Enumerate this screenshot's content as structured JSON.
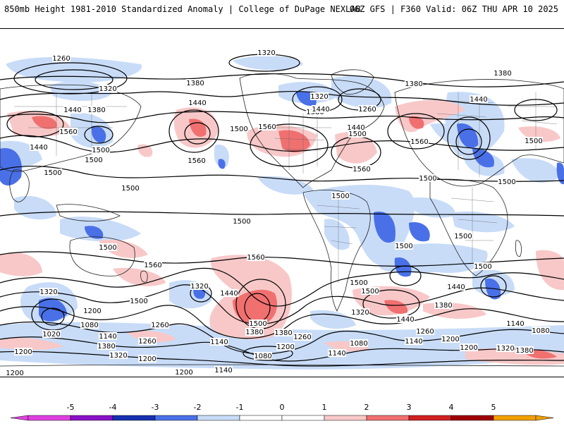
{
  "header": {
    "title_left": "850mb Height 1981-2010 Standardized Anomaly | College of DuPage NEXLAB",
    "title_right": "06Z GFS | F360 Valid: 06Z THU APR 10 2025"
  },
  "colors": {
    "neg5": "#e040e0",
    "neg4": "#8a10c8",
    "neg3": "#1530b0",
    "neg2": "#4a70e8",
    "neg1": "#c8dcf8",
    "zero": "#ffffff",
    "pos1": "#f8c8c8",
    "pos2": "#f07070",
    "pos3": "#d02020",
    "pos4": "#a00000",
    "pos5": "#f0a000"
  },
  "colorbar": {
    "ticks": [
      "-5",
      "-4",
      "-3",
      "-2",
      "-1",
      "0",
      "1",
      "2",
      "3",
      "4",
      "5"
    ]
  },
  "contour_labels": {
    "l1": "1260",
    "l2": "1320",
    "l3": "1320",
    "l4": "1380",
    "l5": "1440",
    "l6": "1380",
    "l7": "1560",
    "l8": "1440",
    "l9": "1500",
    "l10": "1500",
    "l11": "1440",
    "l12": "1560",
    "l13": "1500",
    "l14": "1560",
    "l15": "1320",
    "l16": "1380",
    "l17": "1380",
    "l18": "1260",
    "l19": "1440",
    "l20": "1500",
    "l21": "1560",
    "l22": "1440",
    "l23": "1380",
    "l24": "1500",
    "l25": "1560",
    "l26": "1500",
    "l27": "1500",
    "l28": "1500",
    "l29": "1500",
    "l30": "1500",
    "l31": "1560",
    "l32": "1560",
    "l33": "1440",
    "l34": "1320",
    "l35": "1500",
    "l36": "1500",
    "l37": "1500",
    "l38": "1320",
    "l39": "1200",
    "l40": "1080",
    "l41": "1020",
    "l42": "1140",
    "l43": "1380",
    "l44": "1200",
    "l45": "1320",
    "l46": "1260",
    "l47": "1200",
    "l48": "1260",
    "l49": "1140",
    "l50": "1380",
    "l51": "1200",
    "l52": "1080",
    "l53": "1140",
    "l54": "1200",
    "l55": "1140",
    "l56": "1380",
    "l57": "1260",
    "l58": "1440",
    "l59": "1080",
    "l60": "1320",
    "l61": "1500",
    "l62": "1140",
    "l63": "1200",
    "l64": "1260",
    "l65": "1320",
    "l66": "1380",
    "l67": "1140",
    "l68": "1080",
    "l69": "1500",
    "l70": "1440",
    "l71": "1380",
    "l72": "1200",
    "l73": "1200",
    "l74": "1500",
    "l75": "1500",
    "l76": "1500",
    "l77": "1500",
    "l78": "1440"
  }
}
